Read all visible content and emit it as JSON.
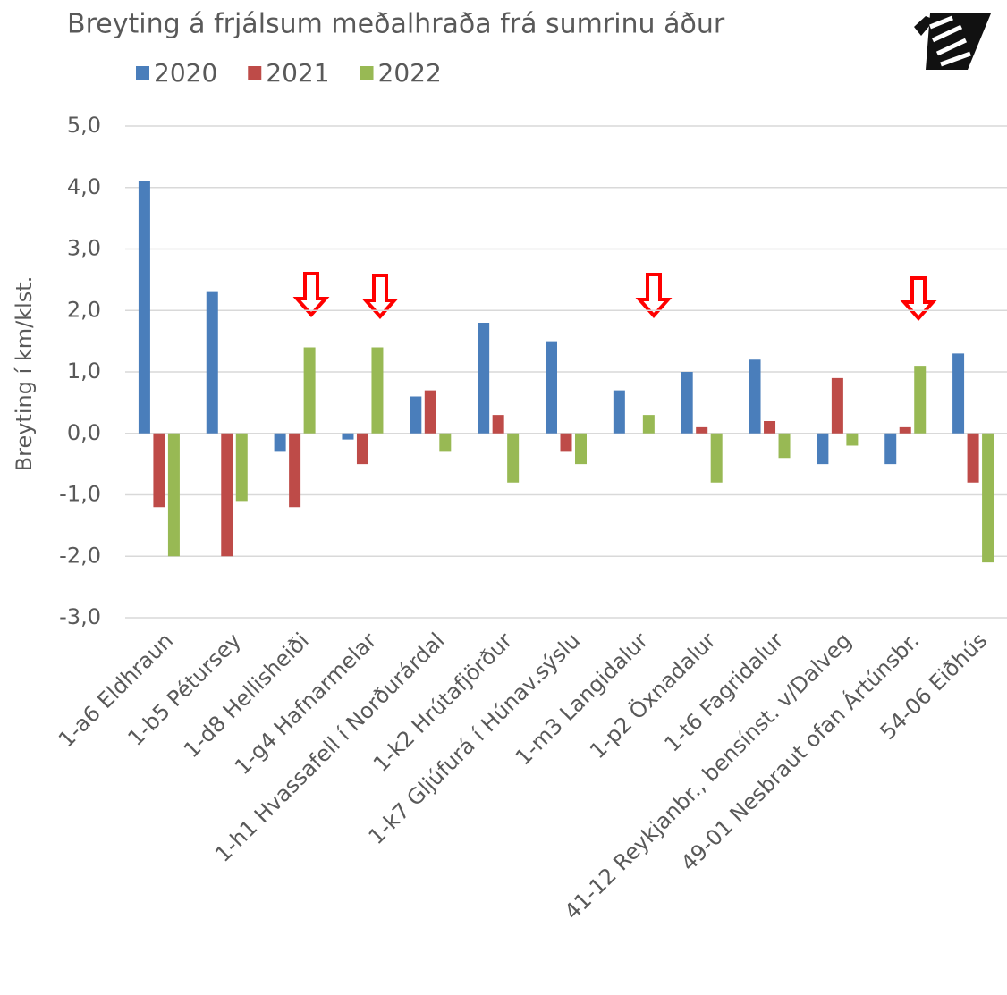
{
  "chart_data": {
    "type": "bar",
    "title": "Breyting á frjálsum meðalhraða frá sumrinu áður",
    "y_label": "Breyting í km/klst.",
    "categories": [
      "1-a6 Eldhraun",
      "1-b5 Pétursey",
      "1-d8 Hellisheiði",
      "1-g4 Hafnarmelar",
      "1-h1 Hvassafell í Norðurárdal",
      "1-k2 Hrútafjörður",
      "1-k7 Gljúfurá í Húnav.sýslu",
      "1-m3 Langidalur",
      "1-p2 Öxnadalur",
      "1-t6 Fagridalur",
      "41-12 Reykjanbr., bensínst. v/Dalveg",
      "49-01 Nesbraut ofan Ártúnsbr.",
      "54-06 Eiðhús"
    ],
    "series": [
      {
        "name": "2020",
        "color": "#4a7ebb",
        "values": [
          4.1,
          2.3,
          -0.3,
          -0.1,
          0.6,
          1.8,
          1.5,
          0.7,
          1.0,
          1.2,
          -0.5,
          -0.5,
          1.3
        ]
      },
      {
        "name": "2021",
        "color": "#be4b48",
        "values": [
          -1.2,
          -2.0,
          -1.2,
          -0.5,
          0.7,
          0.3,
          -0.3,
          0,
          0.1,
          0.2,
          0.9,
          0.1,
          -0.8
        ]
      },
      {
        "name": "2022",
        "color": "#98b954",
        "values": [
          -2.0,
          -1.1,
          1.4,
          1.4,
          -0.3,
          -0.8,
          -0.5,
          0.3,
          -0.8,
          -0.4,
          -0.2,
          1.1,
          -2.1
        ]
      }
    ],
    "ylim": [
      -3,
      5
    ],
    "yticks": [
      {
        "value": -3,
        "label": "-3,0"
      },
      {
        "value": -2,
        "label": "-2,0"
      },
      {
        "value": -1,
        "label": "-1,0"
      },
      {
        "value": 0,
        "label": "0,0"
      },
      {
        "value": 1,
        "label": "1,0"
      },
      {
        "value": 2,
        "label": "2,0"
      },
      {
        "value": 3,
        "label": "3,0"
      },
      {
        "value": 4,
        "label": "4,0"
      },
      {
        "value": 5,
        "label": "5,0"
      }
    ],
    "grid": true,
    "legend": "top"
  }
}
